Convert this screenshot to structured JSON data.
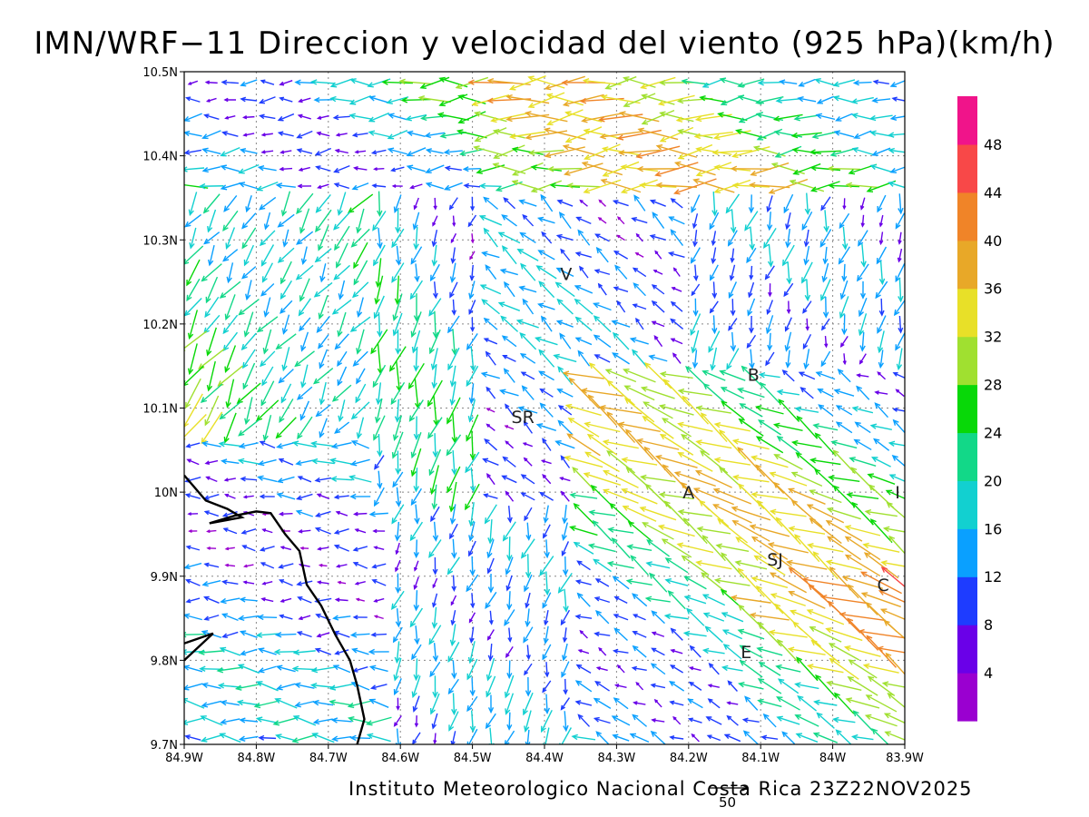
{
  "title": "IMN/WRF−11 Direccion y velocidad del viento (925 hPa)(km/h)",
  "footer": "Instituto Meteorologico Nacional Costa Rica 23Z22NOV2025",
  "reference_vector": {
    "label": "50",
    "speed_kmh": 50
  },
  "axes": {
    "lon_ticks": [
      "84.9W",
      "84.8W",
      "84.7W",
      "84.6W",
      "84.5W",
      "84.4W",
      "84.3W",
      "84.2W",
      "84.1W",
      "84W",
      "83.9W"
    ],
    "lat_ticks": [
      "10.5N",
      "10.4N",
      "10.3N",
      "10.2N",
      "10.1N",
      "10N",
      "9.9N",
      "9.8N",
      "9.7N"
    ],
    "lon_range": [
      -84.9,
      -83.9
    ],
    "lat_range": [
      9.7,
      10.5
    ],
    "grid": true
  },
  "cities": [
    {
      "label": "V",
      "lon": -84.37,
      "lat": 10.26
    },
    {
      "label": "SR",
      "lon": -84.43,
      "lat": 10.09
    },
    {
      "label": "B",
      "lon": -84.11,
      "lat": 10.14
    },
    {
      "label": "A",
      "lon": -84.2,
      "lat": 10.0
    },
    {
      "label": "I",
      "lon": -83.91,
      "lat": 10.0
    },
    {
      "label": "SJ",
      "lon": -84.08,
      "lat": 9.92
    },
    {
      "label": "C",
      "lon": -83.93,
      "lat": 9.89
    },
    {
      "label": "E",
      "lon": -84.12,
      "lat": 9.81
    }
  ],
  "colorbar": {
    "labels": [
      "4",
      "8",
      "12",
      "16",
      "20",
      "24",
      "28",
      "32",
      "36",
      "40",
      "44",
      "48"
    ],
    "colors": [
      "#9a00d0",
      "#6a00e8",
      "#1e3cff",
      "#0aa0ff",
      "#12d0d0",
      "#12d888",
      "#08d808",
      "#a0e030",
      "#e8e028",
      "#e8a828",
      "#f08428",
      "#f84848",
      "#f0148a"
    ]
  },
  "coastline": {
    "color": "#000000",
    "lines": [
      [
        [
          -84.9,
          10.02
        ],
        [
          -84.87,
          9.99
        ],
        [
          -84.84,
          9.98
        ],
        [
          -84.82,
          9.97
        ],
        [
          -84.865,
          9.963
        ],
        [
          -84.83,
          9.972
        ],
        [
          -84.8,
          9.977
        ],
        [
          -84.78,
          9.975
        ],
        [
          -84.76,
          9.95
        ],
        [
          -84.74,
          9.93
        ],
        [
          -84.73,
          9.89
        ],
        [
          -84.71,
          9.865
        ],
        [
          -84.69,
          9.83
        ],
        [
          -84.67,
          9.8
        ],
        [
          -84.66,
          9.77
        ],
        [
          -84.65,
          9.73
        ],
        [
          -84.66,
          9.7
        ]
      ],
      [
        [
          -84.9,
          9.82
        ],
        [
          -84.86,
          9.832
        ],
        [
          -84.9,
          9.8
        ]
      ]
    ]
  }
}
